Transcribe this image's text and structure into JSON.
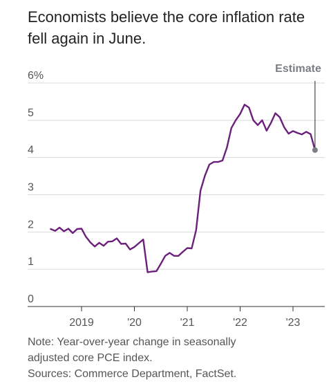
{
  "title": "Economists believe the core inflation rate fell again in June.",
  "note": "Note: Year-over-year change in seasonally adjusted core PCE index.",
  "source": "Sources: Commerce Department, FactSet.",
  "annotation": "Estimate",
  "colors": {
    "line": "#6b1f7b",
    "estimate": "#7a7f85",
    "grid": "#d9d9d9",
    "axis": "#333333",
    "tick_text": "#555555"
  },
  "chart_data": {
    "type": "line",
    "title": "Economists believe the core inflation rate fell again in June.",
    "ylim": [
      0,
      6
    ],
    "yticks": [
      0,
      1,
      2,
      3,
      4,
      5,
      6
    ],
    "ytick_labels": [
      "0",
      "1",
      "2",
      "3",
      "4",
      "5",
      "6%"
    ],
    "xtick_labels": [
      "2019",
      "'20",
      "'21",
      "'22",
      "'23"
    ],
    "xtick_values": [
      "2019-01",
      "2020-01",
      "2021-01",
      "2022-01",
      "2023-01"
    ],
    "grid": true,
    "series": [
      {
        "x": [
          "2018-06",
          "2018-07",
          "2018-08",
          "2018-09",
          "2018-10",
          "2018-11",
          "2018-12",
          "2019-01",
          "2019-02",
          "2019-03",
          "2019-04",
          "2019-05",
          "2019-06",
          "2019-07",
          "2019-08",
          "2019-09",
          "2019-10",
          "2019-11",
          "2019-12",
          "2020-01",
          "2020-02",
          "2020-03",
          "2020-04",
          "2020-05",
          "2020-06",
          "2020-07",
          "2020-08",
          "2020-09",
          "2020-10",
          "2020-11",
          "2020-12",
          "2021-01",
          "2021-02",
          "2021-03",
          "2021-04",
          "2021-05",
          "2021-06",
          "2021-07",
          "2021-08",
          "2021-09",
          "2021-10",
          "2021-11",
          "2021-12",
          "2022-01",
          "2022-02",
          "2022-03",
          "2022-04",
          "2022-05",
          "2022-06",
          "2022-07",
          "2022-08",
          "2022-09",
          "2022-10",
          "2022-11",
          "2022-12",
          "2023-01",
          "2023-02",
          "2023-03",
          "2023-04",
          "2023-05",
          "2023-06"
        ],
        "values": [
          2.08,
          2.03,
          2.12,
          2.02,
          2.09,
          1.97,
          2.08,
          2.09,
          1.87,
          1.72,
          1.61,
          1.71,
          1.63,
          1.74,
          1.75,
          1.83,
          1.68,
          1.69,
          1.53,
          1.6,
          1.7,
          1.8,
          0.92,
          0.94,
          0.95,
          1.15,
          1.36,
          1.44,
          1.36,
          1.36,
          1.47,
          1.57,
          1.56,
          2.05,
          3.11,
          3.51,
          3.81,
          3.88,
          3.88,
          3.92,
          4.27,
          4.79,
          5.0,
          5.17,
          5.42,
          5.34,
          5.0,
          4.87,
          5.0,
          4.72,
          4.93,
          5.19,
          5.08,
          4.81,
          4.64,
          4.71,
          4.66,
          4.62,
          4.69,
          4.63,
          4.2
        ]
      }
    ],
    "estimate_point": {
      "x": "2023-06",
      "value": 4.2,
      "label": "Estimate"
    }
  }
}
